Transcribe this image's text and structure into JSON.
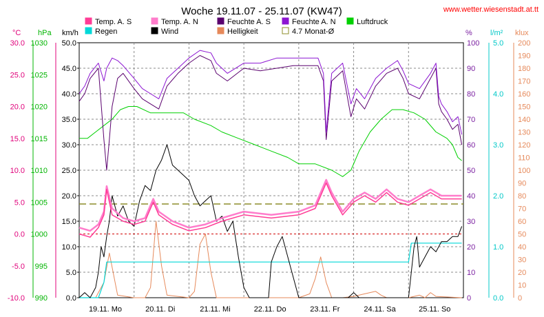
{
  "chart_data": {
    "type": "line",
    "title": "Woche 19.11.07 - 25.11.07 (KW47)",
    "source": "www.wetter.wiesenstadt.at.tt",
    "legend": [
      {
        "name": "Temp. A. S",
        "color": "#ff3c96"
      },
      {
        "name": "Temp. A. N",
        "color": "#ff7ccb"
      },
      {
        "name": "Feuchte A. S",
        "color": "#5a006e"
      },
      {
        "name": "Feuchte A. N",
        "color": "#8c14d2"
      },
      {
        "name": "Luftdruck",
        "color": "#00d000"
      },
      {
        "name": "Regen",
        "color": "#00d8d8"
      },
      {
        "name": "Wind",
        "color": "#000000"
      },
      {
        "name": "Helligkeit",
        "color": "#e6895a"
      },
      {
        "name": "4.7 Monat-Ø",
        "color": "#8c8c28"
      }
    ],
    "axes_left": [
      {
        "unit": "°C",
        "color": "#e0007a",
        "ticks": [
          "30.0",
          "25.0",
          "20.0",
          "15.0",
          "10.0",
          "5.0",
          "0.0",
          "-5.0",
          "-10.0"
        ]
      },
      {
        "unit": "hPa",
        "color": "#00b400",
        "ticks": [
          "1030",
          "1025",
          "1020",
          "1015",
          "1010",
          "1005",
          "1000",
          "995",
          "990"
        ]
      },
      {
        "unit": "km/h",
        "color": "#000000",
        "ticks": [
          "50.0",
          "45.0",
          "40.0",
          "35.0",
          "30.0",
          "25.0",
          "20.0",
          "15.0",
          "10.0",
          "5.0",
          "0.0"
        ]
      }
    ],
    "axes_right": [
      {
        "unit": "%",
        "color": "#7a1ea0",
        "ticks": [
          "100",
          "90",
          "80",
          "70",
          "60",
          "50",
          "40",
          "30",
          "20",
          "10",
          "0"
        ]
      },
      {
        "unit": "l/m²",
        "color": "#00c8c8",
        "ticks": [
          "5.0",
          "4.0",
          "3.0",
          "2.0",
          "1.0",
          "0.0"
        ]
      },
      {
        "unit": "klux",
        "color": "#e6895a",
        "ticks": [
          "200",
          "190",
          "180",
          "170",
          "160",
          "150",
          "140",
          "130",
          "120",
          "110",
          "100",
          "90",
          "80",
          "70",
          "60",
          "50",
          "40",
          "30",
          "20",
          "10",
          "0"
        ]
      }
    ],
    "x_labels": [
      "19.11. Mo",
      "20.11. Di",
      "21.11. Mi",
      "22.11. Do",
      "23.11. Fr",
      "24.11. Sa",
      "25.11. So"
    ],
    "x_range": [
      0,
      7
    ],
    "reference_lines": {
      "temp_month_avg": 4.7,
      "temp_zero": 0
    },
    "series": [
      {
        "name": "Luftdruck",
        "unit": "hPa",
        "x": [
          0,
          0.15,
          0.3,
          0.45,
          0.6,
          0.75,
          0.9,
          1.05,
          1.3,
          1.6,
          1.9,
          2.1,
          2.4,
          2.6,
          2.9,
          3.2,
          3.5,
          3.8,
          4.0,
          4.3,
          4.6,
          4.8,
          4.95,
          5.1,
          5.3,
          5.5,
          5.7,
          5.9,
          6.1,
          6.3,
          6.5,
          6.7,
          6.8,
          6.9,
          6.97
        ],
        "y": [
          1015,
          1015,
          1016,
          1017,
          1018,
          1019.5,
          1020,
          1020,
          1019,
          1019,
          1019,
          1018,
          1017,
          1016,
          1015,
          1014,
          1013,
          1012,
          1011,
          1011,
          1010,
          1009,
          1010,
          1013,
          1016,
          1018,
          1019.5,
          1019.5,
          1019,
          1018,
          1016,
          1015,
          1014,
          1012,
          1011.5
        ]
      },
      {
        "name": "Temp. A. S",
        "unit": "°C",
        "x": [
          0,
          0.2,
          0.35,
          0.45,
          0.5,
          0.6,
          0.8,
          1.0,
          1.2,
          1.3,
          1.35,
          1.45,
          1.7,
          2.0,
          2.3,
          2.6,
          3.0,
          3.5,
          4.0,
          4.3,
          4.5,
          4.6,
          4.8,
          5.0,
          5.2,
          5.4,
          5.6,
          5.8,
          6.0,
          6.2,
          6.4,
          6.6,
          6.8,
          6.97
        ],
        "y": [
          0,
          -0.5,
          1,
          3,
          7,
          3,
          2,
          1.5,
          2,
          4,
          5,
          3,
          1.5,
          0.5,
          1,
          2,
          3,
          2.5,
          3,
          4,
          8,
          6,
          3,
          5,
          6,
          5,
          6.5,
          5,
          4.5,
          5.5,
          6.5,
          5.5,
          5.5,
          5.5
        ]
      },
      {
        "name": "Temp. A. N",
        "unit": "°C",
        "x": [
          0,
          0.2,
          0.35,
          0.45,
          0.5,
          0.6,
          0.8,
          1.0,
          1.2,
          1.3,
          1.35,
          1.45,
          1.7,
          2.0,
          2.3,
          2.6,
          3.0,
          3.5,
          4.0,
          4.3,
          4.5,
          4.6,
          4.8,
          5.0,
          5.2,
          5.4,
          5.6,
          5.8,
          6.0,
          6.2,
          6.4,
          6.6,
          6.8,
          6.97
        ],
        "y": [
          1,
          0.5,
          1.5,
          3.5,
          7.5,
          4,
          2.5,
          2,
          2.5,
          4.5,
          5.5,
          3.5,
          2,
          1,
          1.5,
          2.5,
          3.5,
          3,
          3.5,
          4.5,
          8.5,
          6.5,
          3.5,
          5.5,
          6.5,
          5.5,
          7,
          5.5,
          5,
          6,
          7,
          6,
          6,
          6
        ]
      },
      {
        "name": "Feuchte A. S",
        "unit": "%",
        "x": [
          0,
          0.1,
          0.2,
          0.35,
          0.45,
          0.5,
          0.55,
          0.6,
          0.7,
          0.8,
          1.0,
          1.15,
          1.3,
          1.45,
          1.6,
          1.8,
          2.0,
          2.2,
          2.4,
          2.5,
          2.7,
          3.0,
          3.3,
          3.6,
          3.9,
          4.2,
          4.35,
          4.45,
          4.5,
          4.6,
          4.8,
          4.95,
          5.05,
          5.2,
          5.4,
          5.6,
          5.8,
          5.9,
          6.0,
          6.2,
          6.4,
          6.5,
          6.55,
          6.6,
          6.7,
          6.8,
          6.9,
          6.97
        ],
        "y": [
          77,
          80,
          86,
          90,
          62,
          50,
          62,
          75,
          86,
          88,
          82,
          78,
          76,
          74,
          83,
          88,
          92,
          95,
          93,
          88,
          85,
          90,
          89,
          90,
          91,
          91,
          91,
          85,
          62,
          85,
          89,
          71,
          78,
          74,
          83,
          88,
          90,
          86,
          80,
          78,
          86,
          90,
          76,
          73,
          70,
          66,
          68,
          60
        ]
      },
      {
        "name": "Feuchte A. N",
        "unit": "%",
        "x": [
          0,
          0.1,
          0.2,
          0.35,
          0.45,
          0.5,
          0.55,
          0.6,
          0.7,
          0.8,
          1.0,
          1.15,
          1.3,
          1.45,
          1.6,
          1.8,
          2.0,
          2.2,
          2.4,
          2.5,
          2.7,
          3.0,
          3.3,
          3.6,
          3.9,
          4.2,
          4.35,
          4.45,
          4.5,
          4.6,
          4.8,
          4.95,
          5.05,
          5.2,
          5.4,
          5.6,
          5.8,
          5.9,
          6.0,
          6.2,
          6.4,
          6.5,
          6.55,
          6.6,
          6.7,
          6.8,
          6.9,
          6.97
        ],
        "y": [
          80,
          83,
          88,
          92,
          85,
          90,
          92,
          94,
          93,
          91,
          86,
          82,
          80,
          78,
          86,
          90,
          94,
          97,
          96,
          92,
          88,
          92,
          92,
          94,
          94,
          94,
          94,
          88,
          65,
          88,
          92,
          76,
          82,
          78,
          86,
          90,
          93,
          89,
          84,
          82,
          88,
          92,
          79,
          76,
          73,
          69,
          71,
          64
        ]
      },
      {
        "name": "Wind",
        "unit": "km/h",
        "x": [
          0,
          0.1,
          0.2,
          0.3,
          0.35,
          0.4,
          0.45,
          0.5,
          0.55,
          0.6,
          0.7,
          0.8,
          0.9,
          1.0,
          1.1,
          1.2,
          1.3,
          1.4,
          1.5,
          1.6,
          1.7,
          1.8,
          1.9,
          2.0,
          2.1,
          2.2,
          2.3,
          2.4,
          2.5,
          2.6,
          2.7,
          2.8,
          2.9,
          3.0,
          3.1,
          3.2,
          3.3,
          3.4,
          3.45,
          3.5,
          3.6,
          3.7,
          3.8,
          4.0,
          4.6,
          4.9,
          5.0,
          5.1,
          5.8,
          5.9,
          6.0,
          6.05,
          6.1,
          6.15,
          6.2,
          6.3,
          6.4,
          6.5,
          6.6,
          6.7,
          6.8,
          6.9,
          6.97
        ],
        "y": [
          0,
          1,
          0,
          2,
          5,
          10,
          8,
          12,
          15,
          20,
          16,
          18,
          15,
          14,
          19,
          22,
          21,
          25,
          27,
          30,
          26,
          25,
          24,
          23,
          20,
          18,
          19,
          20,
          15,
          16,
          13,
          15,
          8,
          2,
          0,
          0,
          0,
          0,
          0,
          7,
          10,
          12,
          8,
          0,
          0,
          0,
          1,
          0,
          0,
          0,
          0,
          5,
          10,
          12,
          6,
          8,
          10,
          9,
          11,
          11,
          12,
          12,
          14
        ]
      },
      {
        "name": "Regen",
        "unit": "l/m²",
        "x": [
          0,
          0.35,
          0.45,
          0.5,
          0.55,
          6.0,
          6.05,
          6.97
        ],
        "y": [
          0,
          0,
          0.3,
          0.7,
          0.7,
          0.7,
          1.07,
          1.07
        ]
      },
      {
        "name": "Helligkeit",
        "unit": "klux",
        "x": [
          0,
          0.3,
          0.45,
          0.55,
          0.7,
          1.0,
          1.2,
          1.3,
          1.4,
          1.5,
          1.6,
          2.0,
          2.1,
          2.2,
          2.3,
          2.4,
          2.5,
          3.0,
          3.5,
          4.0,
          4.2,
          4.3,
          4.4,
          4.5,
          4.6,
          4.8,
          5.0,
          5.2,
          5.4,
          5.5,
          5.6,
          5.8,
          6.0,
          6.1,
          6.2,
          6.3,
          6.4,
          6.5,
          6.97
        ],
        "y": [
          0,
          0,
          12,
          35,
          2,
          0,
          0,
          8,
          60,
          25,
          2,
          0,
          5,
          42,
          50,
          20,
          0,
          0,
          0,
          0,
          3,
          15,
          32,
          12,
          0,
          0,
          1,
          3,
          5,
          2,
          0,
          0,
          0,
          1,
          2,
          0,
          4,
          1,
          0
        ]
      }
    ]
  }
}
